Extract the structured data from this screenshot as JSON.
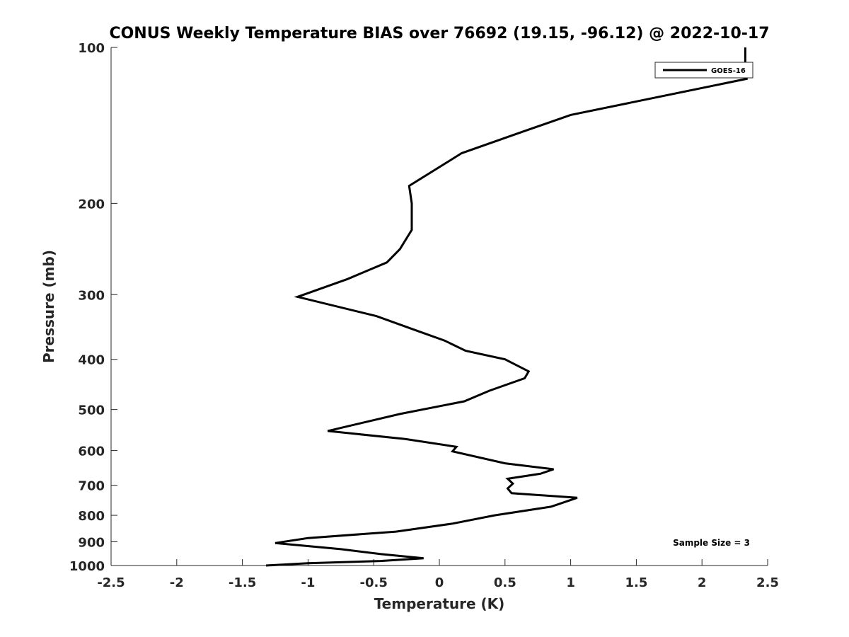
{
  "chart_data": {
    "type": "line",
    "title": "CONUS Weekly Temperature BIAS over 76692 (19.15, -96.12) @ 2022-10-17",
    "xlabel": "Temperature (K)",
    "ylabel": "Pressure (mb)",
    "xlim": [
      -2.5,
      2.5
    ],
    "ylim": [
      100,
      1000
    ],
    "y_scale": "log",
    "y_reversed": true,
    "x_ticks": [
      "-2.5",
      "-2",
      "-1.5",
      "-1",
      "-0.5",
      "0",
      "0.5",
      "1",
      "1.5",
      "2",
      "2.5"
    ],
    "x_tick_values": [
      -2.5,
      -2,
      -1.5,
      -1,
      -0.5,
      0,
      0.5,
      1,
      1.5,
      2,
      2.5
    ],
    "y_ticks": [
      "100",
      "200",
      "300",
      "400",
      "500",
      "600",
      "700",
      "800",
      "900",
      "1000"
    ],
    "y_tick_values": [
      100,
      200,
      300,
      400,
      500,
      600,
      700,
      800,
      900,
      1000
    ],
    "grid": false,
    "legend_position": "top-right",
    "series": [
      {
        "name": "GOES-16",
        "color": "#000000",
        "points": [
          {
            "x": 2.33,
            "y": 100
          },
          {
            "x": 2.33,
            "y": 108
          },
          {
            "x": 2.34,
            "y": 115
          },
          {
            "x": 1.0,
            "y": 135
          },
          {
            "x": 0.65,
            "y": 145
          },
          {
            "x": 0.17,
            "y": 160
          },
          {
            "x": -0.23,
            "y": 185
          },
          {
            "x": -0.21,
            "y": 200
          },
          {
            "x": -0.21,
            "y": 225
          },
          {
            "x": -0.3,
            "y": 245
          },
          {
            "x": -0.4,
            "y": 260
          },
          {
            "x": -0.7,
            "y": 280
          },
          {
            "x": -1.08,
            "y": 303
          },
          {
            "x": -0.48,
            "y": 330
          },
          {
            "x": -0.2,
            "y": 350
          },
          {
            "x": 0.04,
            "y": 368
          },
          {
            "x": 0.2,
            "y": 385
          },
          {
            "x": 0.5,
            "y": 400
          },
          {
            "x": 0.68,
            "y": 422
          },
          {
            "x": 0.65,
            "y": 435
          },
          {
            "x": 0.38,
            "y": 460
          },
          {
            "x": 0.19,
            "y": 482
          },
          {
            "x": -0.3,
            "y": 510
          },
          {
            "x": -0.85,
            "y": 550
          },
          {
            "x": -0.26,
            "y": 570
          },
          {
            "x": 0.13,
            "y": 590
          },
          {
            "x": 0.1,
            "y": 602
          },
          {
            "x": 0.5,
            "y": 635
          },
          {
            "x": 0.87,
            "y": 652
          },
          {
            "x": 0.77,
            "y": 665
          },
          {
            "x": 0.52,
            "y": 680
          },
          {
            "x": 0.56,
            "y": 695
          },
          {
            "x": 0.52,
            "y": 710
          },
          {
            "x": 0.55,
            "y": 725
          },
          {
            "x": 1.05,
            "y": 740
          },
          {
            "x": 0.85,
            "y": 770
          },
          {
            "x": 0.42,
            "y": 800
          },
          {
            "x": 0.1,
            "y": 830
          },
          {
            "x": -0.33,
            "y": 860
          },
          {
            "x": -1.0,
            "y": 885
          },
          {
            "x": -1.25,
            "y": 905
          },
          {
            "x": -0.75,
            "y": 930
          },
          {
            "x": -0.45,
            "y": 950
          },
          {
            "x": -0.12,
            "y": 968
          },
          {
            "x": -0.45,
            "y": 980
          },
          {
            "x": -1.0,
            "y": 990
          },
          {
            "x": -1.32,
            "y": 1000
          }
        ]
      }
    ],
    "annotations": [
      {
        "text": "Sample Size = 3",
        "position": "bottom-right"
      }
    ]
  }
}
